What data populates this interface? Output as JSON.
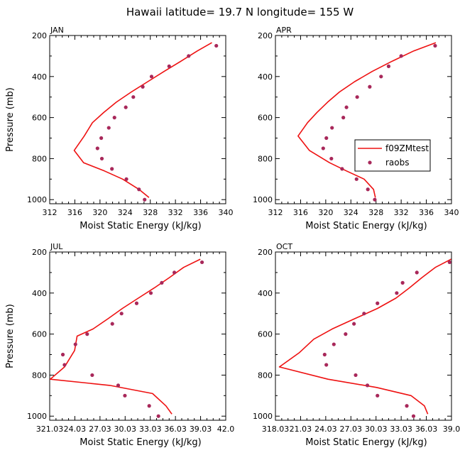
{
  "figure": {
    "title": "Hawaii  latitude= 19.7 N longitude= 155 W"
  },
  "legend": {
    "line_label": "f09ZMtest",
    "point_label": "raobs"
  },
  "colors": {
    "line": "#ee1111",
    "point": "#a8285a",
    "axis": "#000000"
  },
  "chart_data": [
    {
      "type": "line",
      "panel": "JAN",
      "xlabel": "Moist Static Energy (kJ/kg)",
      "ylabel": "Pressure (mb)",
      "xlim": [
        312,
        340
      ],
      "ylim": [
        1020,
        200
      ],
      "xticks": [
        312,
        316,
        320,
        324,
        328,
        332,
        336,
        340
      ],
      "xtick_labels": [
        "312",
        "316",
        "320",
        "324",
        "328",
        "332",
        "336",
        "340"
      ],
      "yticks": [
        200,
        400,
        600,
        800,
        1000
      ],
      "ytick_labels": [
        "200",
        "400",
        "600",
        "800",
        "1000"
      ],
      "show_ylabel": true,
      "series": [
        {
          "name": "f09ZMtest",
          "kind": "line",
          "x": [
            337.8,
            335.5,
            332.9,
            330.2,
            327.6,
            325.0,
            322.6,
            320.6,
            318.8,
            317.5,
            315.9,
            317.4,
            320.7,
            323.6,
            326.2,
            327.8
          ],
          "y": [
            235,
            275,
            325,
            375,
            425,
            475,
            525,
            575,
            625,
            690,
            760,
            820,
            860,
            900,
            950,
            990
          ]
        },
        {
          "name": "raobs",
          "kind": "points",
          "x": [
            338.5,
            334.1,
            331.0,
            328.2,
            326.8,
            325.3,
            324.1,
            322.3,
            321.4,
            320.2,
            319.6,
            320.3,
            321.9,
            324.2,
            326.2,
            327.1
          ],
          "y": [
            250,
            300,
            350,
            400,
            450,
            500,
            550,
            600,
            650,
            700,
            750,
            800,
            850,
            900,
            950,
            1000
          ]
        }
      ]
    },
    {
      "type": "line",
      "panel": "APR",
      "xlabel": "Moist Static Energy (kJ/kg)",
      "ylabel": "",
      "xlim": [
        312,
        340
      ],
      "ylim": [
        1020,
        200
      ],
      "xticks": [
        312,
        316,
        320,
        324,
        328,
        332,
        336,
        340
      ],
      "xtick_labels": [
        "312",
        "316",
        "320",
        "324",
        "328",
        "332",
        "336",
        "340"
      ],
      "yticks": [
        200,
        400,
        600,
        800,
        1000
      ],
      "ytick_labels": [
        "200",
        "400",
        "600",
        "800",
        "1000"
      ],
      "show_ylabel": false,
      "legend": true,
      "series": [
        {
          "name": "f09ZMtest",
          "kind": "line",
          "x": [
            337.5,
            334.0,
            330.6,
            327.4,
            324.6,
            322.2,
            320.3,
            318.6,
            317.1,
            315.6,
            317.4,
            320.6,
            323.3,
            326.1,
            327.6,
            327.9
          ],
          "y": [
            235,
            275,
            325,
            375,
            425,
            475,
            525,
            575,
            625,
            690,
            760,
            820,
            860,
            900,
            950,
            990
          ]
        },
        {
          "name": "raobs",
          "kind": "points",
          "x": [
            337.4,
            332.0,
            330.0,
            328.8,
            327.0,
            325.0,
            323.3,
            322.8,
            321.0,
            320.1,
            319.6,
            320.9,
            322.6,
            324.9,
            326.7,
            327.8
          ],
          "y": [
            250,
            300,
            350,
            400,
            450,
            500,
            550,
            600,
            650,
            700,
            750,
            800,
            850,
            900,
            950,
            1000
          ]
        }
      ]
    },
    {
      "type": "line",
      "panel": "JUL",
      "xlabel": "Moist Static Energy (kJ/kg)",
      "ylabel": "Pressure (mb)",
      "xlim": [
        321.03,
        342.03
      ],
      "ylim": [
        1020,
        200
      ],
      "xticks": [
        321.03,
        324.03,
        327.03,
        330.03,
        333.03,
        336.03,
        339.03,
        342.03
      ],
      "xtick_labels": [
        "321.03",
        "24.03",
        "27.03",
        "30.03",
        "33.03",
        "36.03",
        "39.03",
        "42.0"
      ],
      "yticks": [
        200,
        400,
        600,
        800,
        1000
      ],
      "ytick_labels": [
        "200",
        "400",
        "600",
        "800",
        "1000"
      ],
      "show_ylabel": true,
      "series": [
        {
          "name": "f09ZMtest",
          "kind": "line",
          "x": [
            339.0,
            337.0,
            335.3,
            333.5,
            331.6,
            329.7,
            328.0,
            326.2,
            324.3,
            324.0,
            322.8,
            321.1,
            328.2,
            333.3,
            334.9,
            335.6
          ],
          "y": [
            235,
            275,
            325,
            375,
            425,
            475,
            525,
            575,
            610,
            680,
            760,
            820,
            850,
            890,
            950,
            990
          ]
        },
        {
          "name": "raobs",
          "kind": "points",
          "x": [
            339.2,
            335.9,
            334.4,
            333.1,
            331.4,
            329.6,
            328.5,
            325.5,
            324.1,
            322.6,
            322.8,
            326.1,
            329.2,
            330.0,
            332.9,
            334.0
          ],
          "y": [
            250,
            300,
            350,
            400,
            450,
            500,
            550,
            600,
            650,
            700,
            750,
            800,
            850,
            900,
            950,
            1000
          ]
        }
      ]
    },
    {
      "type": "line",
      "panel": "OCT",
      "xlabel": "Moist Static Energy (kJ/kg)",
      "ylabel": "",
      "xlim": [
        318.03,
        339.03
      ],
      "ylim": [
        1020,
        200
      ],
      "xticks": [
        318.03,
        321.03,
        324.03,
        327.03,
        330.03,
        333.03,
        336.03,
        339.03
      ],
      "xtick_labels": [
        "318.03",
        "21.03",
        "24.03",
        "27.03",
        "30.03",
        "33.03",
        "36.03",
        "39.0"
      ],
      "yticks": [
        200,
        400,
        600,
        800,
        1000
      ],
      "ytick_labels": [
        "200",
        "400",
        "600",
        "800",
        "1000"
      ],
      "show_ylabel": false,
      "series": [
        {
          "name": "f09ZMtest",
          "kind": "line",
          "x": [
            339.0,
            337.1,
            335.5,
            334.0,
            332.4,
            330.2,
            327.5,
            324.8,
            322.6,
            320.9,
            318.5,
            324.3,
            330.1,
            334.2,
            335.8,
            336.2
          ],
          "y": [
            235,
            275,
            325,
            375,
            425,
            475,
            525,
            575,
            625,
            690,
            760,
            820,
            860,
            900,
            950,
            990
          ]
        },
        {
          "name": "raobs",
          "kind": "points",
          "x": [
            338.8,
            334.9,
            333.2,
            332.5,
            330.2,
            328.6,
            327.4,
            326.4,
            325.0,
            323.9,
            324.1,
            327.6,
            329.0,
            330.2,
            333.7,
            334.5
          ],
          "y": [
            250,
            300,
            350,
            400,
            450,
            500,
            550,
            600,
            650,
            700,
            750,
            800,
            850,
            900,
            950,
            1000
          ]
        }
      ]
    }
  ]
}
